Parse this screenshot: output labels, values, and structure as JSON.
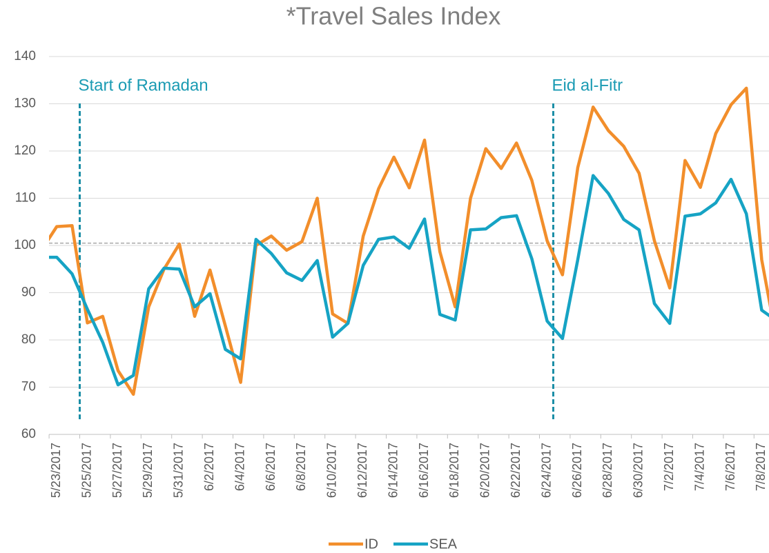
{
  "chart_data": {
    "type": "line",
    "title": "*Travel Sales Index",
    "categories": [
      null,
      "5/23/2017",
      null,
      "5/25/2017",
      null,
      "5/27/2017",
      null,
      "5/29/2017",
      null,
      "5/31/2017",
      null,
      "6/2/2017",
      null,
      "6/4/2017",
      null,
      "6/6/2017",
      null,
      "6/8/2017",
      null,
      "6/10/2017",
      null,
      "6/12/2017",
      null,
      "6/14/2017",
      null,
      "6/16/2017",
      null,
      "6/18/2017",
      null,
      "6/20/2017",
      null,
      "6/22/2017",
      null,
      "6/24/2017",
      null,
      "6/26/2017",
      null,
      "6/28/2017",
      null,
      "6/30/2017",
      null,
      "7/2/2017",
      null,
      "7/4/2017",
      null,
      "7/6/2017",
      null,
      "7/8/2017",
      null
    ],
    "series": [
      {
        "name": "ID",
        "color": "#f28e2b",
        "values": [
          99,
          104,
          104.2,
          83.6,
          85,
          73.5,
          68.5,
          87,
          95,
          100.3,
          85,
          94.8,
          83,
          71,
          100,
          102,
          99,
          100.8,
          110,
          85.5,
          83.5,
          102,
          112,
          118.7,
          112.2,
          122.3,
          98.7,
          87,
          110,
          120.5,
          116.3,
          121.7,
          113.8,
          101,
          93.8,
          116.5,
          129.3,
          124.3,
          121,
          115.3,
          101,
          91,
          118,
          112.3,
          123.7,
          129.8,
          133.3,
          97,
          79.5
        ]
      },
      {
        "name": "SEA",
        "color": "#16a3c4",
        "values": [
          97.5,
          97.5,
          94,
          86.5,
          79.5,
          70.5,
          72.5,
          90.8,
          95.2,
          95,
          87,
          89.8,
          78,
          76,
          101.3,
          98.3,
          94.2,
          92.6,
          96.8,
          80.6,
          83.5,
          95.8,
          101.3,
          101.8,
          99.4,
          105.6,
          85.4,
          84.2,
          103.3,
          103.5,
          105.9,
          106.3,
          97.2,
          84,
          80.3,
          97,
          114.8,
          111,
          105.5,
          103.3,
          87.7,
          83.5,
          106.2,
          106.7,
          109,
          114,
          106.7,
          86.3,
          84
        ]
      }
    ],
    "ylim": [
      60,
      140
    ],
    "yticks": [
      60,
      70,
      80,
      90,
      100,
      110,
      120,
      130,
      140
    ],
    "grid": true,
    "reference_line": 100.5,
    "annotations": [
      {
        "text": "Start of Ramadan",
        "x_index": 2.5
      },
      {
        "text": "Eid al-Fitr",
        "x_index": 33.4
      }
    ],
    "legend": "bottom"
  }
}
